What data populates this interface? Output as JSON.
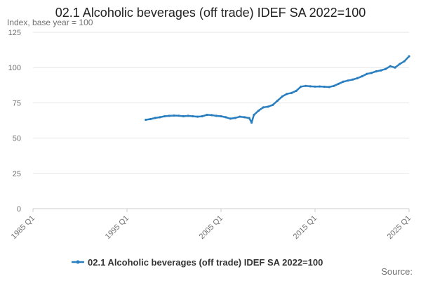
{
  "title": "02.1 Alcoholic beverages (off trade) IDEF SA 2022=100",
  "source_label": "Source:",
  "colors": {
    "series": "#2a7fc1",
    "grid": "#e6e6e6",
    "axis": "#cccccc"
  },
  "chart_data": {
    "type": "line",
    "title": "02.1 Alcoholic beverages (off trade) IDEF SA 2022=100",
    "ylabel": "Index, base year = 100",
    "xlabel": "",
    "ylim": [
      0,
      125
    ],
    "xlim": [
      1985,
      2025
    ],
    "y_ticks": [
      "0",
      "25",
      "50",
      "75",
      "100",
      "125"
    ],
    "x_ticks": [
      "1985 Q1",
      "1995 Q1",
      "2005 Q1",
      "2015 Q1",
      "2025 Q1"
    ],
    "grid": "horizontal",
    "legend_position": "bottom",
    "series": [
      {
        "name": "02.1 Alcoholic beverages (off trade) IDEF SA 2022=100",
        "color": "#2a7fc1",
        "x": [
          1997.0,
          1997.5,
          1998.0,
          1998.5,
          1999.0,
          1999.5,
          2000.0,
          2000.5,
          2001.0,
          2001.5,
          2002.0,
          2002.5,
          2003.0,
          2003.5,
          2004.0,
          2004.5,
          2005.0,
          2005.5,
          2006.0,
          2006.5,
          2007.0,
          2007.5,
          2008.0,
          2008.25,
          2008.5,
          2009.0,
          2009.5,
          2010.0,
          2010.5,
          2011.0,
          2011.5,
          2012.0,
          2012.5,
          2013.0,
          2013.5,
          2014.0,
          2014.5,
          2015.0,
          2015.5,
          2016.0,
          2016.5,
          2017.0,
          2017.5,
          2018.0,
          2018.5,
          2019.0,
          2019.5,
          2020.0,
          2020.5,
          2021.0,
          2021.5,
          2022.0,
          2022.5,
          2023.0,
          2023.5,
          2024.0,
          2024.5,
          2025.0
        ],
        "values": [
          63.0,
          63.5,
          64.3,
          64.8,
          65.5,
          65.8,
          66.0,
          65.9,
          65.5,
          65.8,
          65.5,
          65.2,
          65.5,
          66.5,
          66.3,
          65.8,
          65.5,
          64.8,
          63.8,
          64.3,
          65.2,
          64.8,
          64.2,
          61.0,
          66.5,
          69.5,
          71.8,
          72.3,
          73.5,
          76.5,
          79.5,
          81.3,
          82.0,
          83.5,
          86.5,
          87.0,
          86.7,
          86.5,
          86.6,
          86.4,
          86.2,
          87.0,
          88.5,
          90.0,
          90.8,
          91.5,
          92.5,
          93.8,
          95.5,
          96.2,
          97.3,
          98.0,
          99.0,
          101.0,
          100.0,
          102.5,
          104.5,
          108.0
        ]
      }
    ]
  }
}
